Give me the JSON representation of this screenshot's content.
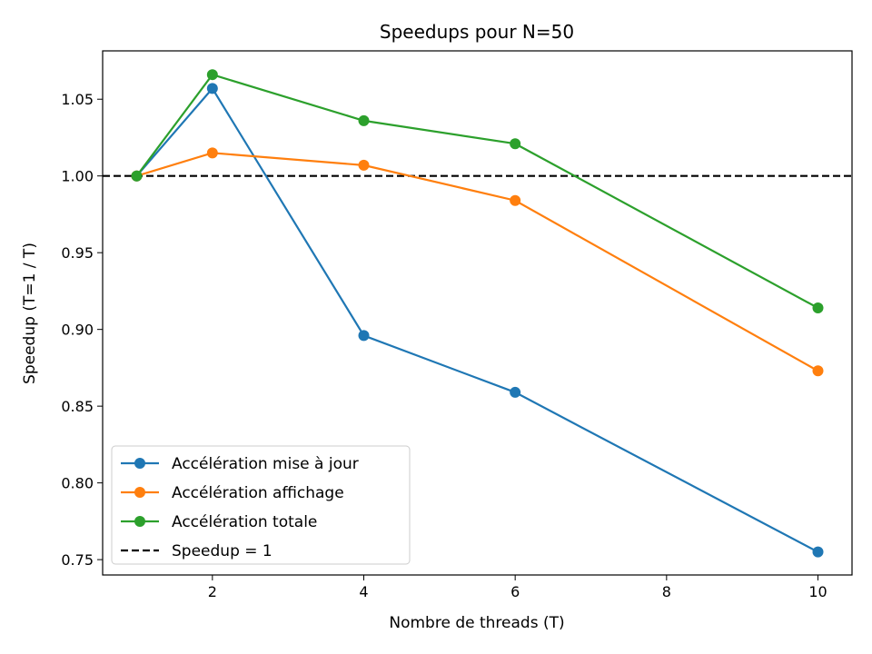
{
  "chart_data": {
    "type": "line",
    "title": "Speedups pour N=50",
    "xlabel": "Nombre de threads (T)",
    "ylabel": "Speedup (T=1 / T)",
    "xlim": [
      0.55,
      10.45
    ],
    "ylim": [
      0.74,
      1.0815
    ],
    "xticks": [
      2,
      4,
      6,
      8,
      10
    ],
    "yticks": [
      0.75,
      0.8,
      0.85,
      0.9,
      0.95,
      1.0,
      1.05
    ],
    "legend_position": "lower-left",
    "grid": false,
    "x": [
      1,
      2,
      4,
      6,
      10
    ],
    "series": [
      {
        "name": "Accélération mise à jour",
        "color": "#1f77b4",
        "values": [
          1.0,
          1.057,
          0.896,
          0.859,
          0.755
        ]
      },
      {
        "name": "Accélération affichage",
        "color": "#ff7f0e",
        "values": [
          1.0,
          1.015,
          1.007,
          0.984,
          0.873
        ]
      },
      {
        "name": "Accélération totale",
        "color": "#2ca02c",
        "values": [
          1.0,
          1.066,
          1.036,
          1.021,
          0.914
        ]
      }
    ],
    "reference_line": {
      "name": "Speedup = 1",
      "y": 1.0,
      "color": "#000000",
      "style": "dashed"
    }
  }
}
